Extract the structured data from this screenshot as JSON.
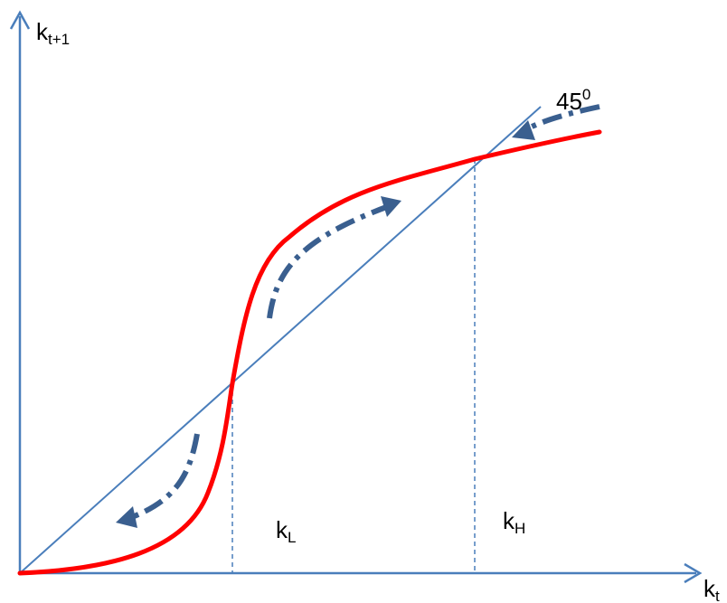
{
  "labels": {
    "y_axis_main": "k",
    "y_axis_sub": "t+1",
    "x_axis_main": "k",
    "x_axis_sub": "t",
    "k_low_main": "k",
    "k_low_sub": "L",
    "k_high_main": "k",
    "k_high_sub": "H",
    "angle_main": "45",
    "angle_sup": "0"
  },
  "colors": {
    "axis": "#4a7ebb",
    "diagonal": "#4a7ebb",
    "curve": "#ff0000",
    "arrows": "#3a5f8f",
    "guides": "#4a7ebb",
    "text": "#000000"
  }
}
